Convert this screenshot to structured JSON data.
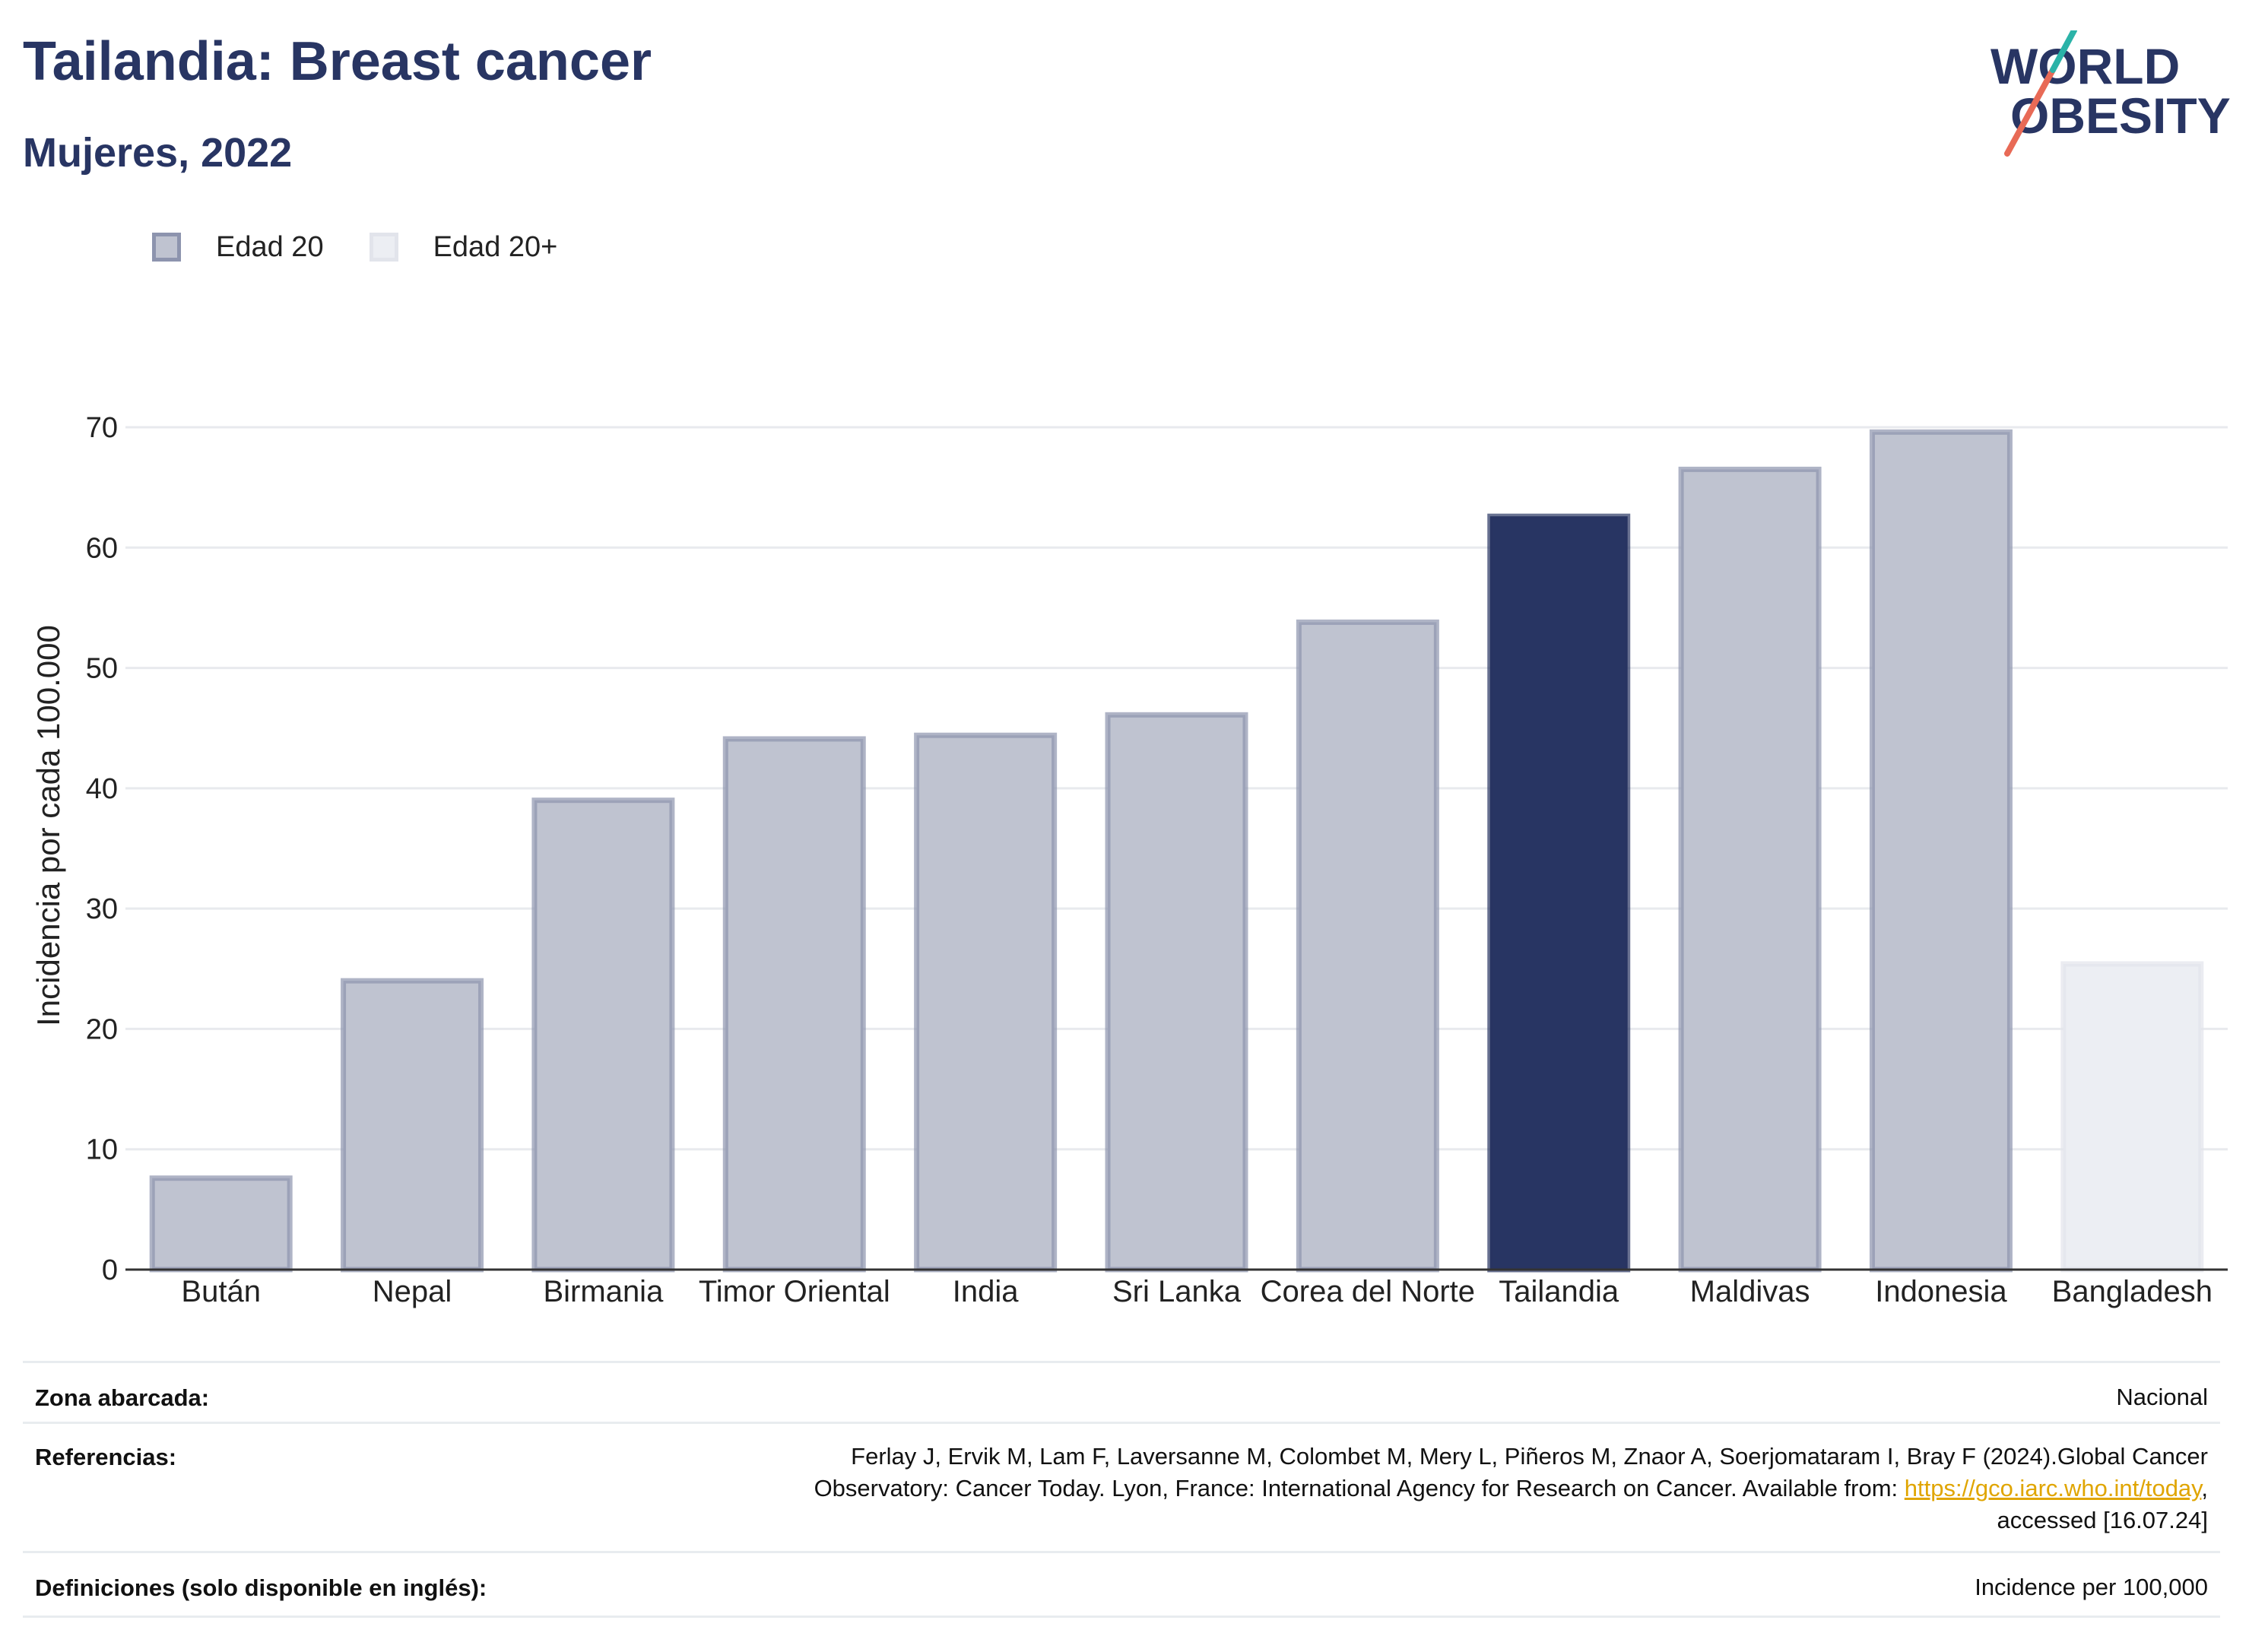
{
  "header": {
    "title": "Tailandia: Breast cancer",
    "subtitle": "Mujeres, 2022"
  },
  "logo": {
    "line1": "WORLD",
    "line2": "OBESITY"
  },
  "legend": [
    {
      "label": "Edad 20",
      "color": "#bfc3d0"
    },
    {
      "label": "Edad 20+",
      "color": "#eceef3"
    }
  ],
  "chart_data": {
    "type": "bar",
    "ylabel": "Incidencia por cada 100.000",
    "xlabel": "",
    "ylim": [
      0,
      70
    ],
    "yticks": [
      0,
      10,
      20,
      30,
      40,
      50,
      60,
      70
    ],
    "grid": true,
    "categories": [
      "Bután",
      "Nepal",
      "Birmania",
      "Timor Oriental",
      "India",
      "Sri Lanka",
      "Corea del Norte",
      "Tailandia",
      "Maldivas",
      "Indonesia",
      "Bangladesh"
    ],
    "values": [
      7.6,
      24.0,
      39.0,
      44.1,
      44.4,
      46.1,
      53.8,
      62.6,
      66.5,
      69.6,
      25.4
    ],
    "groups": [
      "Edad 20",
      "Edad 20",
      "Edad 20",
      "Edad 20",
      "Edad 20",
      "Edad 20",
      "Edad 20",
      "Edad 20",
      "Edad 20",
      "Edad 20",
      "Edad 20+"
    ],
    "highlight": "Tailandia",
    "colors": {
      "edad20": "#bfc3d0",
      "edad20_border": "#8d94ae",
      "edad20plus": "#eceef3",
      "edad20plus_border": "#e2e4eb",
      "highlight": "#283563"
    }
  },
  "footer": {
    "zona_label": "Zona abarcada:",
    "zona_value": "Nacional",
    "ref_label": "Referencias:",
    "ref_line1": "Ferlay J, Ervik M, Lam F, Laversanne M, Colombet M, Mery L, Piñeros M, Znaor A, Soerjomataram I, Bray F (2024).Global Cancer",
    "ref_line2_pre": "Observatory: Cancer Today. Lyon, France: International Agency for Research on Cancer. Available from: ",
    "ref_link": "https://gco.iarc.who.int/today",
    "ref_line2_post": ",",
    "ref_line3": "accessed [16.07.24]",
    "def_label": "Definiciones (solo disponible en inglés):",
    "def_value": "Incidence per 100,000"
  }
}
